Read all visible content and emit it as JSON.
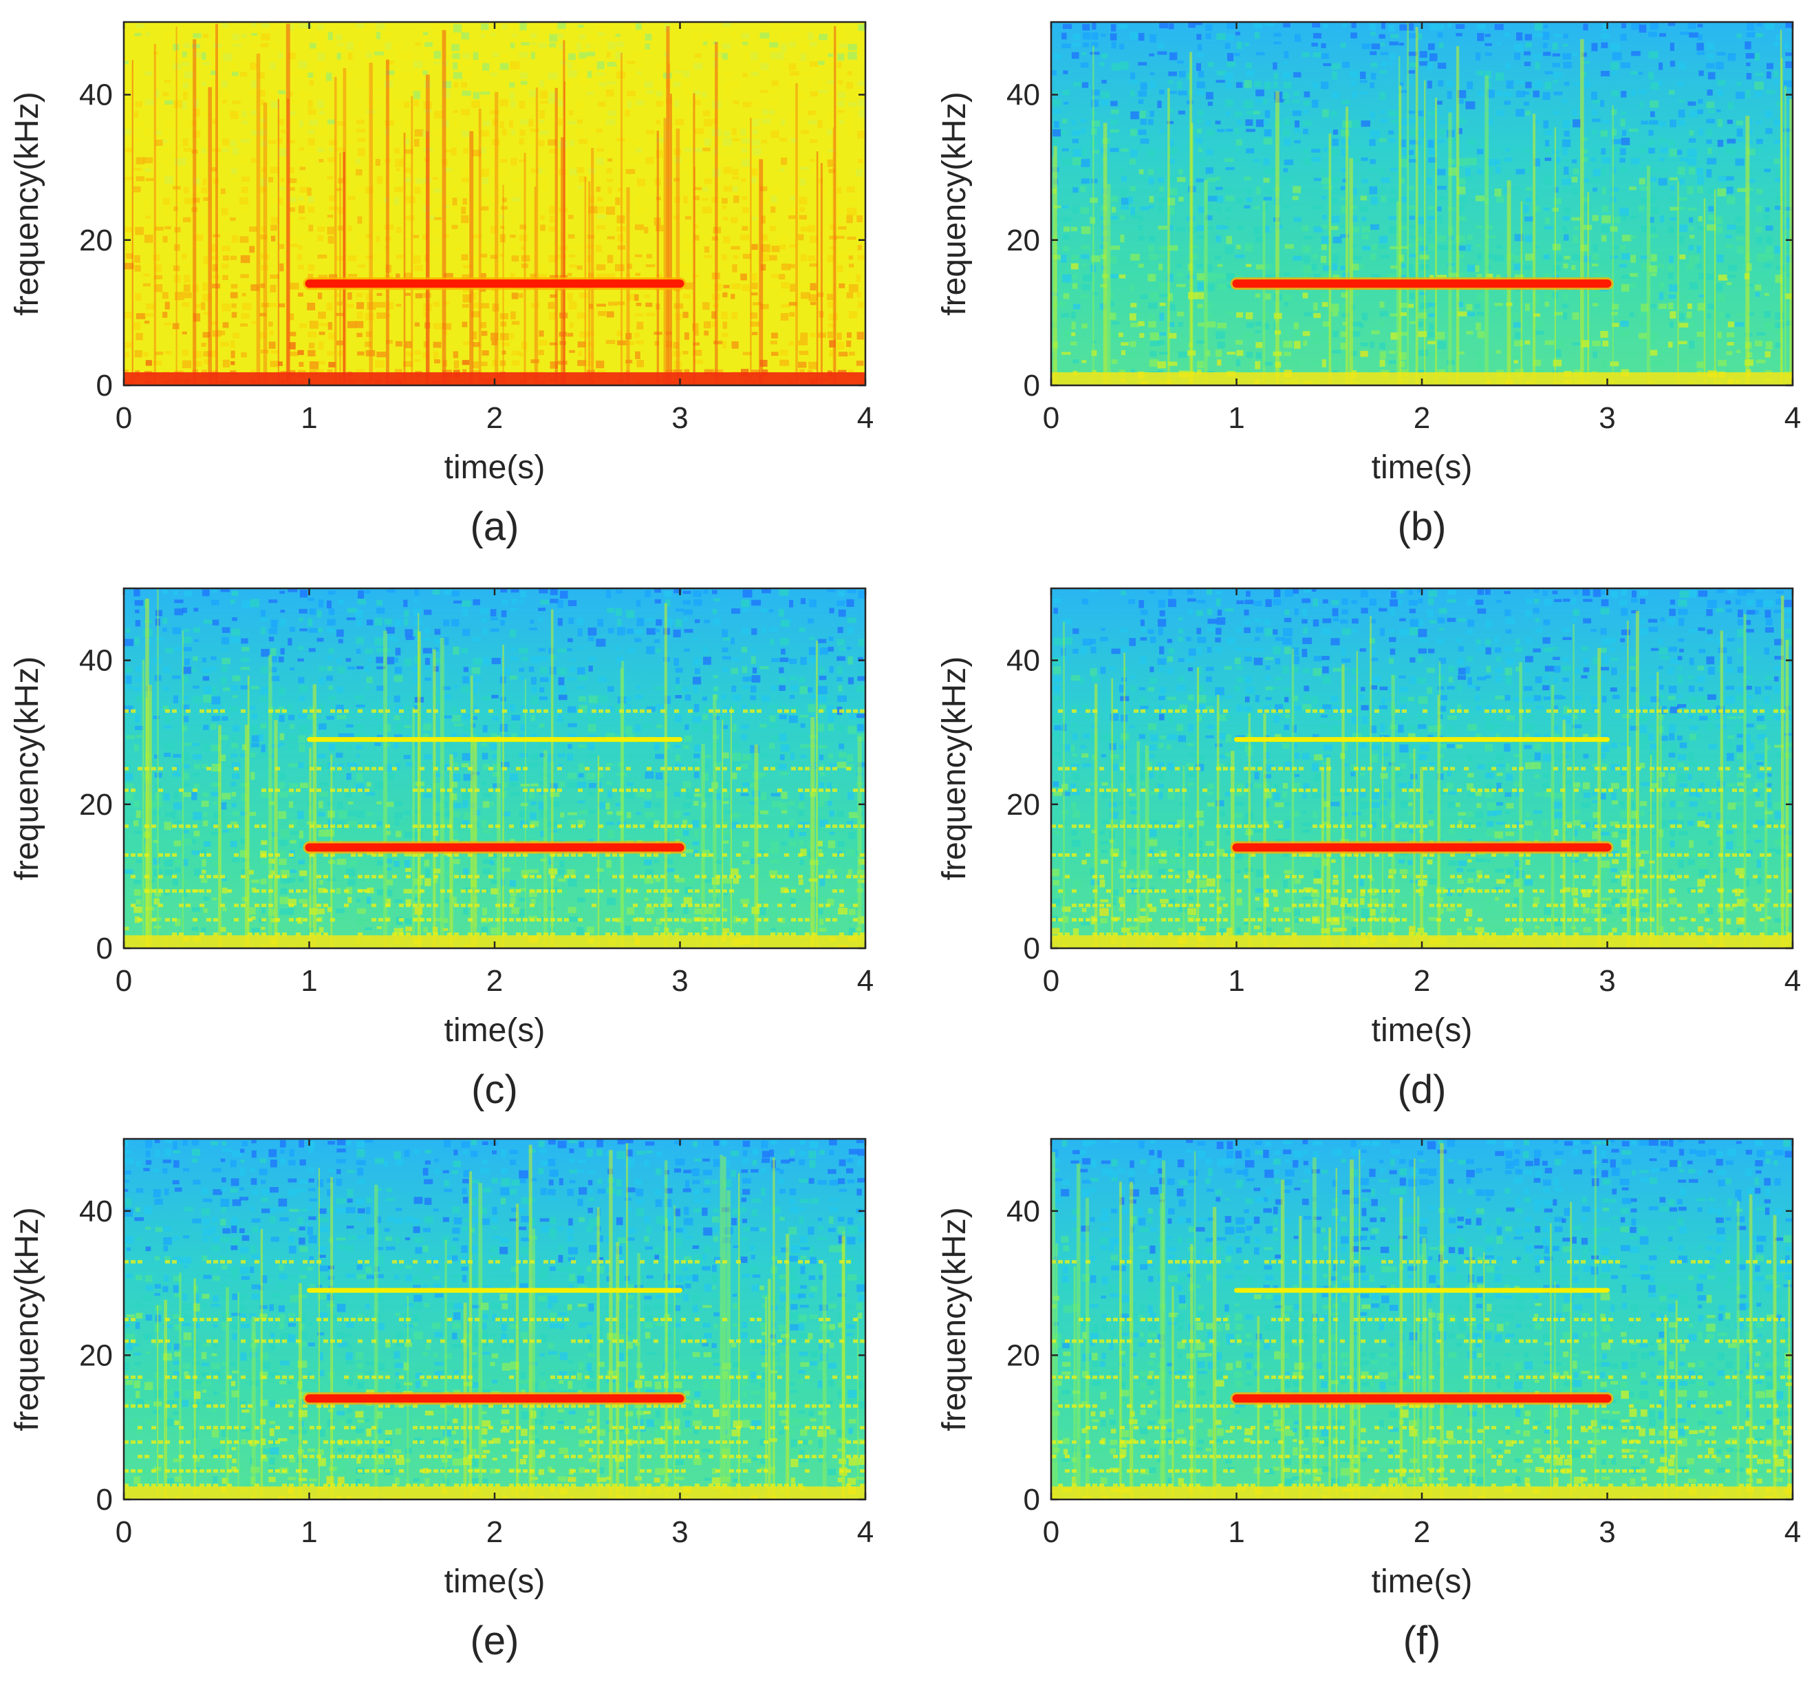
{
  "figure": {
    "panels": [
      {
        "id": "a",
        "label": "(a)",
        "colormap": "warm"
      },
      {
        "id": "b",
        "label": "(b)",
        "colormap": "cool"
      },
      {
        "id": "c",
        "label": "(c)",
        "colormap": "cool"
      },
      {
        "id": "d",
        "label": "(d)",
        "colormap": "cool"
      },
      {
        "id": "e",
        "label": "(e)",
        "colormap": "cool"
      },
      {
        "id": "f",
        "label": "(f)",
        "colormap": "cool"
      }
    ]
  },
  "colors": {
    "tone_red": "#ff1a00",
    "harmonic_yellow": "#f5f000",
    "axis": "#262626"
  },
  "chart_data": [
    {
      "type": "heatmap",
      "panel": "(a)",
      "xlabel": "time(s)",
      "ylabel": "frequency(kHz)",
      "xlim": [
        0,
        4
      ],
      "ylim": [
        0,
        50
      ],
      "xticks": [
        0,
        1,
        2,
        3,
        4
      ],
      "yticks": [
        0,
        20,
        40
      ],
      "tone": {
        "start_s": 1,
        "end_s": 3,
        "freq_khz": 14
      },
      "harmonic": null,
      "colormap": "warm"
    },
    {
      "type": "heatmap",
      "panel": "(b)",
      "xlabel": "time(s)",
      "ylabel": "frequency(kHz)",
      "xlim": [
        0,
        4
      ],
      "ylim": [
        0,
        50
      ],
      "xticks": [
        0,
        1,
        2,
        3,
        4
      ],
      "yticks": [
        0,
        20,
        40
      ],
      "tone": {
        "start_s": 1,
        "end_s": 3,
        "freq_khz": 14
      },
      "harmonic": null,
      "colormap": "cool"
    },
    {
      "type": "heatmap",
      "panel": "(c)",
      "xlabel": "time(s)",
      "ylabel": "frequency(kHz)",
      "xlim": [
        0,
        4
      ],
      "ylim": [
        0,
        50
      ],
      "xticks": [
        0,
        1,
        2,
        3,
        4
      ],
      "yticks": [
        0,
        20,
        40
      ],
      "tone": {
        "start_s": 1,
        "end_s": 3,
        "freq_khz": 14
      },
      "harmonic": {
        "start_s": 1,
        "end_s": 3,
        "freq_khz": 29
      },
      "colormap": "cool"
    },
    {
      "type": "heatmap",
      "panel": "(d)",
      "xlabel": "time(s)",
      "ylabel": "frequency(kHz)",
      "xlim": [
        0,
        4
      ],
      "ylim": [
        0,
        50
      ],
      "xticks": [
        0,
        1,
        2,
        3,
        4
      ],
      "yticks": [
        0,
        20,
        40
      ],
      "tone": {
        "start_s": 1,
        "end_s": 3,
        "freq_khz": 14
      },
      "harmonic": {
        "start_s": 1,
        "end_s": 3,
        "freq_khz": 29
      },
      "colormap": "cool"
    },
    {
      "type": "heatmap",
      "panel": "(e)",
      "xlabel": "time(s)",
      "ylabel": "frequency(kHz)",
      "xlim": [
        0,
        4
      ],
      "ylim": [
        0,
        50
      ],
      "xticks": [
        0,
        1,
        2,
        3,
        4
      ],
      "yticks": [
        0,
        20,
        40
      ],
      "tone": {
        "start_s": 1,
        "end_s": 3,
        "freq_khz": 14
      },
      "harmonic": {
        "start_s": 1,
        "end_s": 3,
        "freq_khz": 29
      },
      "colormap": "cool"
    },
    {
      "type": "heatmap",
      "panel": "(f)",
      "xlabel": "time(s)",
      "ylabel": "frequency(kHz)",
      "xlim": [
        0,
        4
      ],
      "ylim": [
        0,
        50
      ],
      "xticks": [
        0,
        1,
        2,
        3,
        4
      ],
      "yticks": [
        0,
        20,
        40
      ],
      "tone": {
        "start_s": 1,
        "end_s": 3,
        "freq_khz": 14
      },
      "harmonic": {
        "start_s": 1,
        "end_s": 3,
        "freq_khz": 29
      },
      "colormap": "cool"
    }
  ]
}
